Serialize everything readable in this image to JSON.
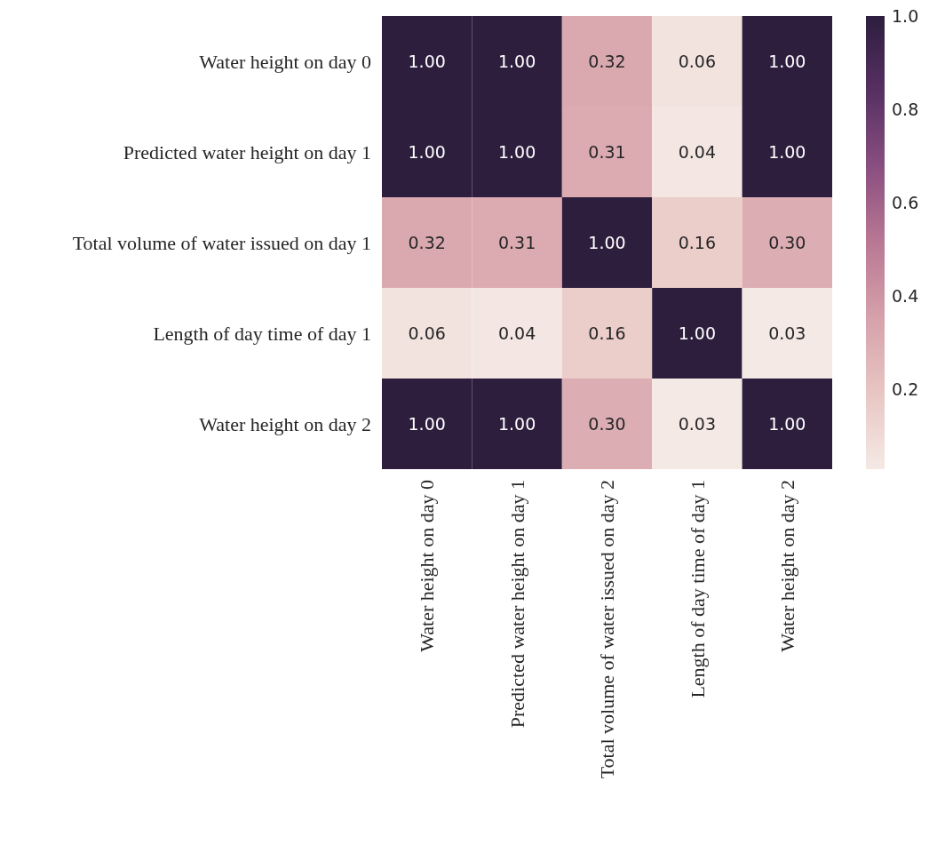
{
  "chart_data": {
    "type": "heatmap",
    "categories": [
      "Water height on day 0",
      "Predicted water height on day 1",
      "Total volume of water issued on day 2",
      "Length of day time of day 1",
      "Water height on day 2"
    ],
    "y_categories": [
      "Water height on day 0",
      "Predicted water height on day 1",
      "Total volume of water issued on day 1",
      "Length of day time of day 1",
      "Water height on day 2"
    ],
    "cells": [
      [
        1,
        1,
        0.32,
        0.06,
        1
      ],
      [
        1,
        1,
        0.31,
        0.04,
        1
      ],
      [
        0.32,
        0.31,
        1,
        0.16,
        0.3
      ],
      [
        0.06,
        0.04,
        0.16,
        1,
        0.03
      ],
      [
        1,
        1,
        0.3,
        0.03,
        1
      ]
    ],
    "cell_labels": [
      [
        "1.00",
        "1.00",
        "0.32",
        "0.06",
        "1.00"
      ],
      [
        "1.00",
        "1.00",
        "0.31",
        "0.04",
        "1.00"
      ],
      [
        "0.32",
        "0.31",
        "1.00",
        "0.16",
        "0.30"
      ],
      [
        "0.06",
        "0.04",
        "0.16",
        "1.00",
        "0.03"
      ],
      [
        "1.00",
        "1.00",
        "0.30",
        "0.03",
        "1.00"
      ]
    ],
    "clim": [
      0.03,
      1.0
    ],
    "cticks": [
      0.2,
      0.4,
      0.6,
      0.8,
      {
        "value": 1.0,
        "label": "1.0"
      }
    ]
  }
}
